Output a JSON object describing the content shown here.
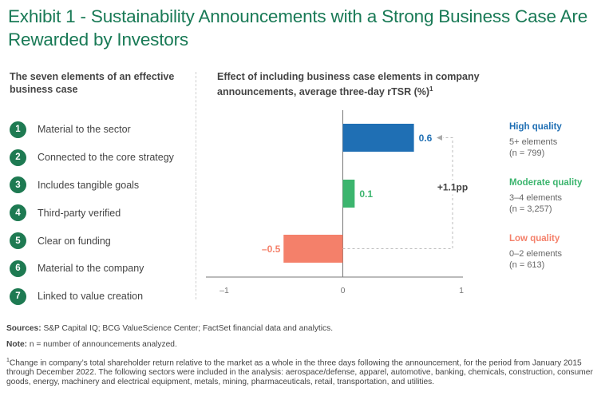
{
  "title": "Exhibit 1 - Sustainability Announcements with a Strong Business Case Are Rewarded by Investors",
  "left_panel": {
    "heading": "The seven elements of an effective business case",
    "elements": [
      {
        "num": "1",
        "label": "Material to the sector"
      },
      {
        "num": "2",
        "label": "Connected to the core strategy"
      },
      {
        "num": "3",
        "label": "Includes tangible goals"
      },
      {
        "num": "4",
        "label": "Third-party verified"
      },
      {
        "num": "5",
        "label": "Clear on funding"
      },
      {
        "num": "6",
        "label": "Material to the company"
      },
      {
        "num": "7",
        "label": "Linked to value creation"
      }
    ]
  },
  "chart_data": {
    "type": "bar",
    "orientation": "horizontal",
    "title": "Effect of including business case elements in company announcements, average three-day rTSR (%)",
    "title_footnote": "1",
    "categories": [
      "High quality",
      "Moderate quality",
      "Low quality"
    ],
    "values": [
      0.6,
      0.1,
      -0.5
    ],
    "data_labels": [
      "0.6",
      "0.1",
      "–0.5"
    ],
    "colors": [
      "#1f6fb4",
      "#3cb56e",
      "#f4806a"
    ],
    "xlim": [
      -1,
      1
    ],
    "xticks": [
      -1,
      0,
      1
    ],
    "xtick_labels": [
      "–1",
      "0",
      "1"
    ],
    "xlabel": "",
    "ylabel": "",
    "grid": false,
    "annotation": {
      "text": "+1.1pp",
      "from": "Low quality",
      "to": "High quality"
    },
    "legend": [
      {
        "name": "High quality",
        "detail": "5+ elements",
        "n": "(n = 799)",
        "color": "#1f6fb4"
      },
      {
        "name": "Moderate quality",
        "detail": "3–4 elements",
        "n": "(n = 3,257)",
        "color": "#3cb56e"
      },
      {
        "name": "Low quality",
        "detail": "0–2 elements",
        "n": "(n = 613)",
        "color": "#f4806a"
      }
    ]
  },
  "footer": {
    "sources_label": "Sources:",
    "sources_text": " S&P Capital IQ; BCG ValueScience Center; FactSet financial data and analytics.",
    "note_label": "Note:",
    "note_text": " n = number of announcements analyzed.",
    "footnote_mark": "1",
    "footnote_text": "Change in company’s total shareholder return relative to the market as a whole in the three days following the announcement, for the period from January 2015 through December 2022. The following sectors were included in the analysis: aerospace/defense, apparel, automotive, banking, chemicals, construction, consumer goods, energy, machinery and electrical equipment, metals, mining, pharmaceuticals, retail, transportation, and utilities."
  }
}
